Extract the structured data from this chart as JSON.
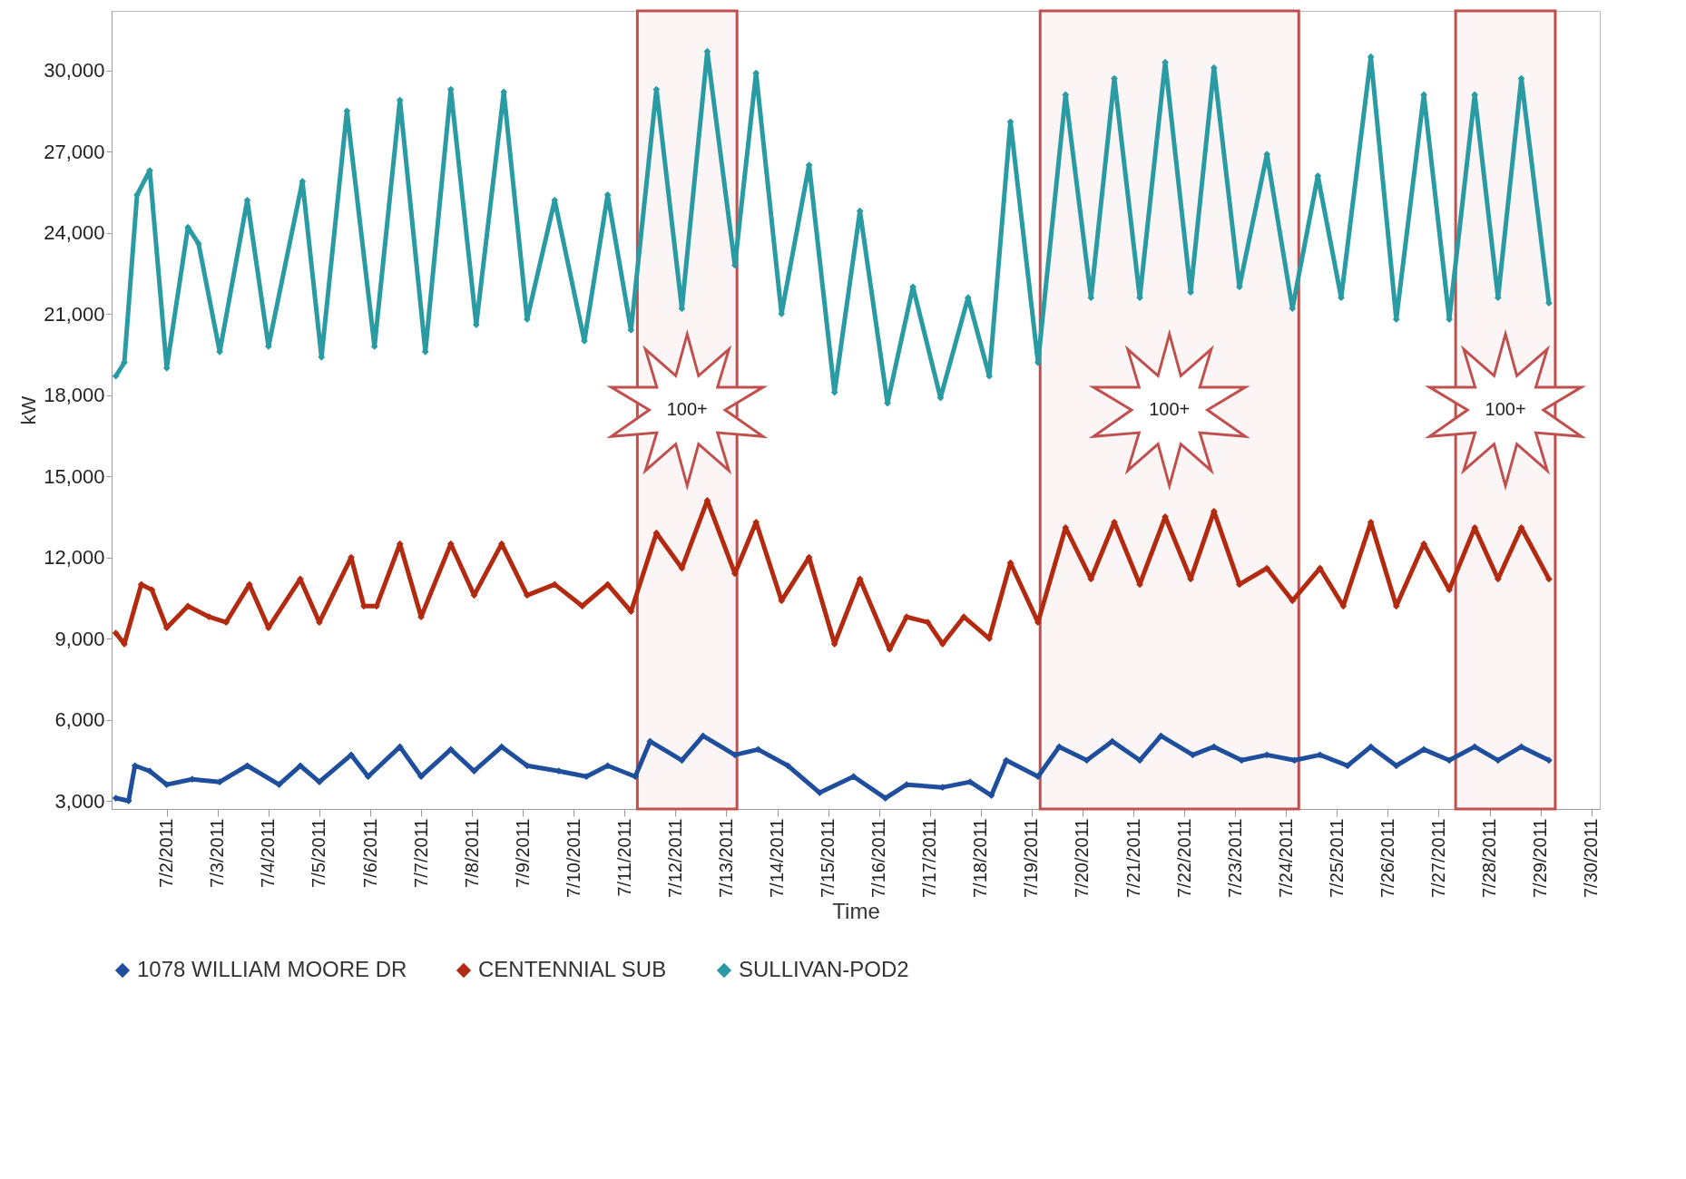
{
  "chart_data": {
    "type": "line",
    "xlabel": "Time",
    "ylabel": "kW",
    "legend": "bottom",
    "marker": "diamond",
    "line_style": "solid",
    "grid": false,
    "xlim": [
      "2011-06-30T22:00",
      "2011-07-30T04:00"
    ],
    "xticks": [
      {
        "value": "2011-07-02",
        "label": "7/2/2011"
      },
      {
        "value": "2011-07-03",
        "label": "7/3/2011"
      },
      {
        "value": "2011-07-04",
        "label": "7/4/2011"
      },
      {
        "value": "2011-07-05",
        "label": "7/5/2011"
      },
      {
        "value": "2011-07-06",
        "label": "7/6/2011"
      },
      {
        "value": "2011-07-07",
        "label": "7/7/2011"
      },
      {
        "value": "2011-07-08",
        "label": "7/8/2011"
      },
      {
        "value": "2011-07-09",
        "label": "7/9/2011"
      },
      {
        "value": "2011-07-10",
        "label": "7/10/2011"
      },
      {
        "value": "2011-07-11",
        "label": "7/11/2011"
      },
      {
        "value": "2011-07-12",
        "label": "7/12/2011"
      },
      {
        "value": "2011-07-13",
        "label": "7/13/2011"
      },
      {
        "value": "2011-07-14",
        "label": "7/14/2011"
      },
      {
        "value": "2011-07-15",
        "label": "7/15/2011"
      },
      {
        "value": "2011-07-16",
        "label": "7/16/2011"
      },
      {
        "value": "2011-07-17",
        "label": "7/17/2011"
      },
      {
        "value": "2011-07-18",
        "label": "7/18/2011"
      },
      {
        "value": "2011-07-19",
        "label": "7/19/2011"
      },
      {
        "value": "2011-07-20",
        "label": "7/20/2011"
      },
      {
        "value": "2011-07-21",
        "label": "7/21/2011"
      },
      {
        "value": "2011-07-22",
        "label": "7/22/2011"
      },
      {
        "value": "2011-07-23",
        "label": "7/23/2011"
      },
      {
        "value": "2011-07-24",
        "label": "7/24/2011"
      },
      {
        "value": "2011-07-25",
        "label": "7/25/2011"
      },
      {
        "value": "2011-07-26",
        "label": "7/26/2011"
      },
      {
        "value": "2011-07-27",
        "label": "7/27/2011"
      },
      {
        "value": "2011-07-28",
        "label": "7/28/2011"
      },
      {
        "value": "2011-07-29",
        "label": "7/29/2011"
      },
      {
        "value": "2011-07-30",
        "label": "7/30/2011"
      }
    ],
    "ylim": [
      2700,
      32200
    ],
    "yticks": [
      {
        "value": 3000,
        "label": "3,000"
      },
      {
        "value": 6000,
        "label": "6,000"
      },
      {
        "value": 9000,
        "label": "9,000"
      },
      {
        "value": 12000,
        "label": "12,000"
      },
      {
        "value": 15000,
        "label": "15,000"
      },
      {
        "value": 18000,
        "label": "18,000"
      },
      {
        "value": 21000,
        "label": "21,000"
      },
      {
        "value": 24000,
        "label": "24,000"
      },
      {
        "value": 27000,
        "label": "27,000"
      },
      {
        "value": 30000,
        "label": "30,000"
      }
    ],
    "bands": [
      {
        "axis": "x",
        "from": "2011-07-11T06:00",
        "to": "2011-07-13T05:00",
        "label": "100+",
        "color": "#c0504d"
      },
      {
        "axis": "x",
        "from": "2011-07-19T04:00",
        "to": "2011-07-24T06:00",
        "label": "100+",
        "color": "#c0504d"
      },
      {
        "axis": "x",
        "from": "2011-07-27T08:00",
        "to": "2011-07-29T07:00",
        "label": "100+",
        "color": "#c0504d"
      }
    ],
    "series": [
      {
        "name": "1078 WILLIAM MOORE DR",
        "color": "#1f4e9c",
        "x": [
          "2011-07-01T00:00",
          "2011-07-01T06:00",
          "2011-07-01T09:00",
          "2011-07-01T16:00",
          "2011-07-02T00:00",
          "2011-07-02T12:00",
          "2011-07-03T01:00",
          "2011-07-03T14:00",
          "2011-07-04T05:00",
          "2011-07-04T15:00",
          "2011-07-05T00:00",
          "2011-07-05T15:00",
          "2011-07-05T23:00",
          "2011-07-06T14:00",
          "2011-07-07T00:00",
          "2011-07-07T14:00",
          "2011-07-08T01:00",
          "2011-07-08T14:00",
          "2011-07-09T02:00",
          "2011-07-09T17:00",
          "2011-07-10T06:00",
          "2011-07-10T16:00",
          "2011-07-11T05:00",
          "2011-07-11T12:00",
          "2011-07-12T03:00",
          "2011-07-12T13:00",
          "2011-07-13T04:00",
          "2011-07-13T15:00",
          "2011-07-14T05:00",
          "2011-07-14T20:00",
          "2011-07-15T12:00",
          "2011-07-16T03:00",
          "2011-07-16T13:00",
          "2011-07-17T06:00",
          "2011-07-17T19:00",
          "2011-07-18T05:00",
          "2011-07-18T12:00",
          "2011-07-19T03:00",
          "2011-07-19T13:00",
          "2011-07-20T02:00",
          "2011-07-20T14:00",
          "2011-07-21T03:00",
          "2011-07-21T13:00",
          "2011-07-22T04:00",
          "2011-07-22T14:00",
          "2011-07-23T03:00",
          "2011-07-23T15:00",
          "2011-07-24T04:00",
          "2011-07-24T16:00",
          "2011-07-25T05:00",
          "2011-07-25T16:00",
          "2011-07-26T04:00",
          "2011-07-26T17:00",
          "2011-07-27T05:00",
          "2011-07-27T17:00",
          "2011-07-28T04:00",
          "2011-07-28T15:00",
          "2011-07-29T04:00"
        ],
        "values": [
          3100,
          3000,
          4300,
          4100,
          3600,
          3800,
          3700,
          4300,
          3600,
          4300,
          3700,
          4700,
          3900,
          5000,
          3900,
          4900,
          4100,
          5000,
          4300,
          4100,
          3900,
          4300,
          3900,
          5200,
          4500,
          5400,
          4700,
          4900,
          4300,
          3300,
          3900,
          3100,
          3600,
          3500,
          3700,
          3200,
          4500,
          3900,
          5000,
          4500,
          5200,
          4500,
          5400,
          4700,
          5000,
          4500,
          4700,
          4500,
          4700,
          4300,
          5000,
          4300,
          4900,
          4500,
          5000,
          4500,
          5000,
          4500
        ]
      },
      {
        "name": "CENTENNIAL SUB",
        "color": "#b22a10",
        "x": [
          "2011-07-01T00:00",
          "2011-07-01T04:00",
          "2011-07-01T12:00",
          "2011-07-01T17:00",
          "2011-07-02T00:00",
          "2011-07-02T10:00",
          "2011-07-02T20:00",
          "2011-07-03T04:00",
          "2011-07-03T15:00",
          "2011-07-04T00:00",
          "2011-07-04T15:00",
          "2011-07-05T00:00",
          "2011-07-05T15:00",
          "2011-07-05T21:00",
          "2011-07-06T03:00",
          "2011-07-06T14:00",
          "2011-07-07T00:00",
          "2011-07-07T14:00",
          "2011-07-08T01:00",
          "2011-07-08T14:00",
          "2011-07-09T02:00",
          "2011-07-09T15:00",
          "2011-07-10T04:00",
          "2011-07-10T16:00",
          "2011-07-11T03:00",
          "2011-07-11T15:00",
          "2011-07-12T03:00",
          "2011-07-12T15:00",
          "2011-07-13T04:00",
          "2011-07-13T14:00",
          "2011-07-14T02:00",
          "2011-07-14T15:00",
          "2011-07-15T03:00",
          "2011-07-15T15:00",
          "2011-07-16T05:00",
          "2011-07-16T13:00",
          "2011-07-16T23:00",
          "2011-07-17T06:00",
          "2011-07-17T16:00",
          "2011-07-18T04:00",
          "2011-07-18T14:00",
          "2011-07-19T03:00",
          "2011-07-19T16:00",
          "2011-07-20T04:00",
          "2011-07-20T15:00",
          "2011-07-21T03:00",
          "2011-07-21T15:00",
          "2011-07-22T03:00",
          "2011-07-22T14:00",
          "2011-07-23T02:00",
          "2011-07-23T15:00",
          "2011-07-24T03:00",
          "2011-07-24T16:00",
          "2011-07-25T03:00",
          "2011-07-25T16:00",
          "2011-07-26T04:00",
          "2011-07-26T17:00",
          "2011-07-27T05:00",
          "2011-07-27T17:00",
          "2011-07-28T04:00",
          "2011-07-28T15:00",
          "2011-07-29T04:00"
        ],
        "values": [
          9200,
          8800,
          11000,
          10800,
          9400,
          10200,
          9800,
          9600,
          11000,
          9400,
          11200,
          9600,
          12000,
          10200,
          10200,
          12500,
          9800,
          12500,
          10600,
          12500,
          10600,
          11000,
          10200,
          11000,
          10000,
          12900,
          11600,
          14100,
          11400,
          13300,
          10400,
          12000,
          8800,
          11200,
          8600,
          9800,
          9600,
          8800,
          9800,
          9000,
          11800,
          9600,
          13100,
          11200,
          13300,
          11000,
          13500,
          11200,
          13700,
          11000,
          11600,
          10400,
          11600,
          10200,
          13300,
          10200,
          12500,
          10800,
          13100,
          11200,
          13100,
          11200
        ]
      },
      {
        "name": "SULLIVAN-POD2",
        "color": "#2a9ba3",
        "x": [
          "2011-07-01T00:00",
          "2011-07-01T04:00",
          "2011-07-01T10:00",
          "2011-07-01T16:00",
          "2011-07-02T00:00",
          "2011-07-02T10:00",
          "2011-07-02T15:00",
          "2011-07-03T01:00",
          "2011-07-03T14:00",
          "2011-07-04T00:00",
          "2011-07-04T16:00",
          "2011-07-05T01:00",
          "2011-07-05T13:00",
          "2011-07-06T02:00",
          "2011-07-06T14:00",
          "2011-07-07T02:00",
          "2011-07-07T14:00",
          "2011-07-08T02:00",
          "2011-07-08T15:00",
          "2011-07-09T02:00",
          "2011-07-09T15:00",
          "2011-07-10T05:00",
          "2011-07-10T16:00",
          "2011-07-11T03:00",
          "2011-07-11T15:00",
          "2011-07-12T03:00",
          "2011-07-12T15:00",
          "2011-07-13T04:00",
          "2011-07-13T14:00",
          "2011-07-14T02:00",
          "2011-07-14T15:00",
          "2011-07-15T03:00",
          "2011-07-15T15:00",
          "2011-07-16T04:00",
          "2011-07-16T16:00",
          "2011-07-17T05:00",
          "2011-07-17T18:00",
          "2011-07-18T04:00",
          "2011-07-18T14:00",
          "2011-07-19T03:00",
          "2011-07-19T16:00",
          "2011-07-20T04:00",
          "2011-07-20T15:00",
          "2011-07-21T03:00",
          "2011-07-21T15:00",
          "2011-07-22T03:00",
          "2011-07-22T14:00",
          "2011-07-23T02:00",
          "2011-07-23T15:00",
          "2011-07-24T03:00",
          "2011-07-24T15:00",
          "2011-07-25T02:00",
          "2011-07-25T16:00",
          "2011-07-26T04:00",
          "2011-07-26T17:00",
          "2011-07-27T05:00",
          "2011-07-27T17:00",
          "2011-07-28T04:00",
          "2011-07-28T15:00",
          "2011-07-29T04:00"
        ],
        "values": [
          18700,
          19200,
          25400,
          26300,
          19000,
          24200,
          23600,
          19600,
          25200,
          19800,
          25900,
          19400,
          28500,
          19800,
          28900,
          19600,
          29300,
          20600,
          29200,
          20800,
          25200,
          20000,
          25400,
          20400,
          29300,
          21200,
          30700,
          22800,
          29900,
          21000,
          26500,
          18100,
          24800,
          17700,
          22000,
          17900,
          21600,
          18700,
          28100,
          19200,
          29100,
          21600,
          29700,
          21600,
          30300,
          21800,
          30100,
          22000,
          26900,
          21200,
          26100,
          21600,
          30500,
          20800,
          29100,
          20800,
          29100,
          21600,
          29700,
          21400
        ]
      }
    ]
  }
}
